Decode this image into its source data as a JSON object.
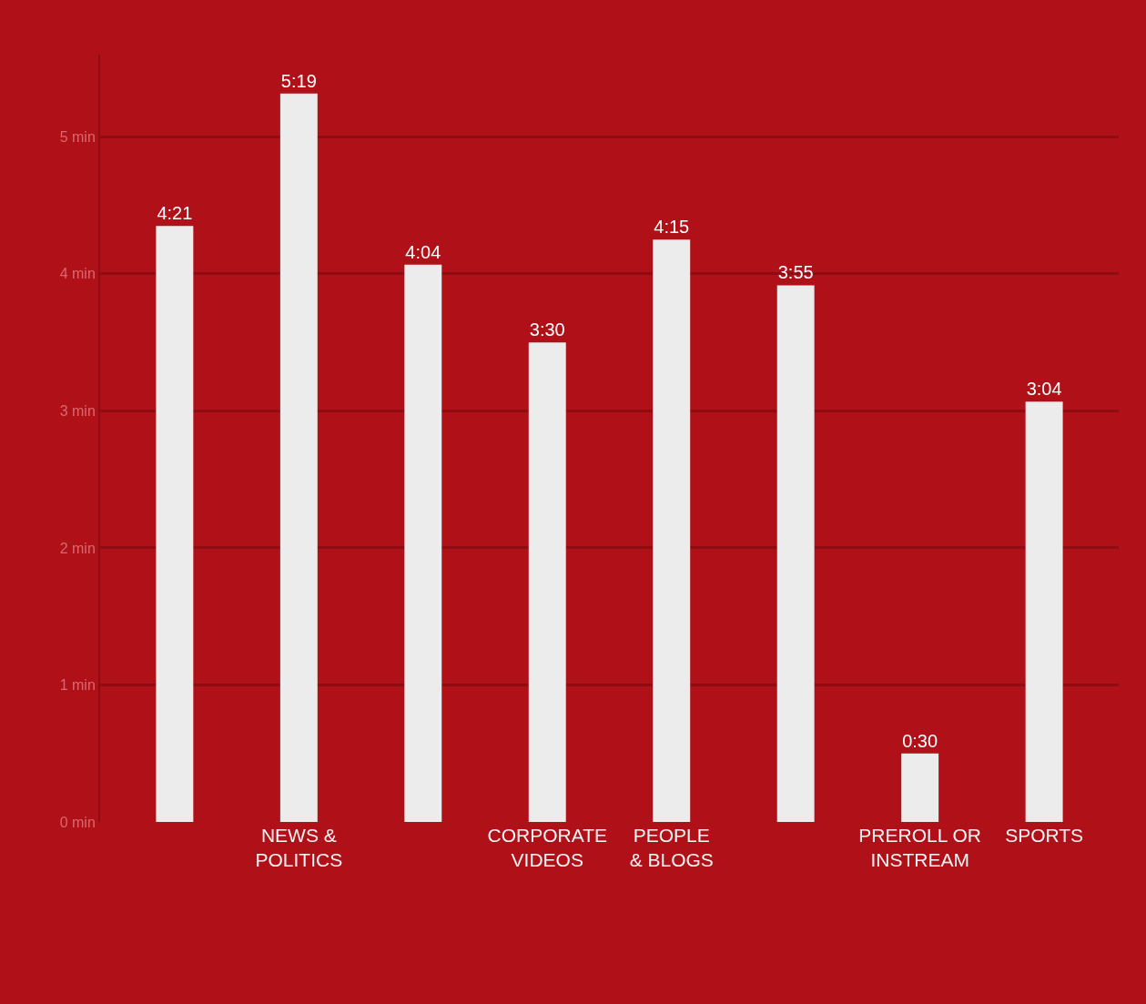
{
  "chart_data": {
    "type": "bar",
    "categories": [
      null,
      "NEWS & POLITICS",
      null,
      "CORPORATE VIDEOS",
      "PEOPLE & BLOGS",
      null,
      "PREROLL OR INSTREAM",
      "SPORTS"
    ],
    "values": [
      4.35,
      5.3167,
      4.0667,
      3.5,
      4.25,
      3.9167,
      0.5,
      3.0667
    ],
    "value_labels": [
      "4:21",
      "5:19",
      "4:04",
      "3:30",
      "4:15",
      "3:55",
      "0:30",
      "3:04"
    ],
    "color": "#ececec",
    "ylim": [
      0,
      5.6
    ],
    "yticks": [
      {
        "value": 0,
        "label": "0 min"
      },
      {
        "value": 1,
        "label": "1 min"
      },
      {
        "value": 2,
        "label": "2 min"
      },
      {
        "value": 3,
        "label": "3 min"
      },
      {
        "value": 4,
        "label": "4 min"
      },
      {
        "value": 5,
        "label": "5 min"
      }
    ],
    "grid": "y"
  }
}
